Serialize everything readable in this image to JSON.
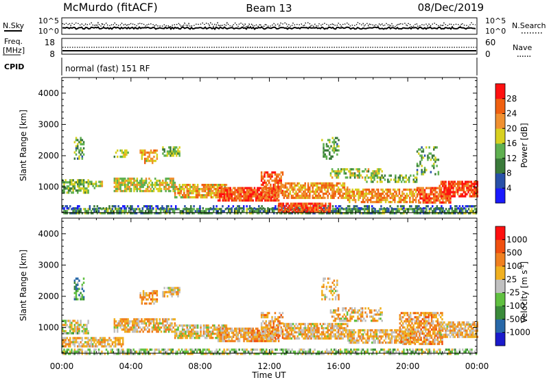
{
  "header": {
    "station": "McMurdo (fitACF)",
    "beam": "Beam 13",
    "date": "08/Dec/2019"
  },
  "noise_panel": {
    "left_label": "N.Sky",
    "right_label": "N.Search",
    "left_ticks": [
      "10^5",
      "10^0"
    ],
    "right_ticks": [
      "10^5",
      "10^0"
    ]
  },
  "freq_panel": {
    "left_label_1": "Freq.",
    "left_label_2": "[MHz]",
    "right_label": "Nave",
    "left_ticks": [
      "18",
      "8"
    ],
    "right_ticks": [
      "60",
      "0"
    ]
  },
  "cpid_panel": {
    "label": "CPID",
    "program": "normal (fast) 151 RF"
  },
  "chart_data": [
    {
      "type": "heatmap",
      "name": "power",
      "ylabel": "Slant Range [km]",
      "xlabel": "Time UT",
      "x_ticks": [
        "00:00",
        "04:00",
        "08:00",
        "12:00",
        "16:00",
        "20:00",
        "00:00"
      ],
      "x_range_hours": [
        0,
        24
      ],
      "y_ticks": [
        1000,
        2000,
        3000,
        4000
      ],
      "ylim": [
        180,
        4500
      ],
      "colorbar": {
        "label": "Power [dB]",
        "ticks": [
          "4",
          "8",
          "12",
          "16",
          "20",
          "24",
          "28"
        ],
        "colors": [
          "#1a1aff",
          "#2850a8",
          "#3a7a3a",
          "#5fb050",
          "#d8d020",
          "#f09030",
          "#f06010",
          "#ff1010"
        ]
      },
      "echo_regions": [
        {
          "t": [
            0.0,
            24.0
          ],
          "r": [
            190,
            330
          ],
          "level": 0.35,
          "density": 0.7
        },
        {
          "t": [
            0.0,
            24.0
          ],
          "r": [
            330,
            420
          ],
          "level": 0.2,
          "density": 0.35
        },
        {
          "t": [
            12.5,
            15.5
          ],
          "r": [
            200,
            500
          ],
          "level": 0.85,
          "density": 0.8
        },
        {
          "t": [
            0.0,
            1.5
          ],
          "r": [
            850,
            1250
          ],
          "level": 0.45,
          "density": 0.65
        },
        {
          "t": [
            1.5,
            2.3
          ],
          "r": [
            950,
            1200
          ],
          "level": 0.5,
          "density": 0.6
        },
        {
          "t": [
            3.0,
            6.5
          ],
          "r": [
            900,
            1300
          ],
          "level": 0.55,
          "density": 0.7
        },
        {
          "t": [
            6.5,
            9.5
          ],
          "r": [
            700,
            1100
          ],
          "level": 0.65,
          "density": 0.75
        },
        {
          "t": [
            9.0,
            12.5
          ],
          "r": [
            600,
            1000
          ],
          "level": 0.85,
          "density": 0.85
        },
        {
          "t": [
            11.5,
            12.8
          ],
          "r": [
            700,
            1500
          ],
          "level": 0.8,
          "density": 0.6
        },
        {
          "t": [
            12.8,
            16.5
          ],
          "r": [
            650,
            1150
          ],
          "level": 0.7,
          "density": 0.75
        },
        {
          "t": [
            16.5,
            20.5
          ],
          "r": [
            550,
            950
          ],
          "level": 0.7,
          "density": 0.7
        },
        {
          "t": [
            20.5,
            22.5
          ],
          "r": [
            500,
            1000
          ],
          "level": 0.8,
          "density": 0.75
        },
        {
          "t": [
            21.8,
            24.0
          ],
          "r": [
            700,
            1200
          ],
          "level": 0.85,
          "density": 0.8
        },
        {
          "t": [
            15.5,
            18.5
          ],
          "r": [
            1300,
            1600
          ],
          "level": 0.5,
          "density": 0.5
        },
        {
          "t": [
            17.5,
            20.5
          ],
          "r": [
            1150,
            1400
          ],
          "level": 0.45,
          "density": 0.5
        },
        {
          "t": [
            0.7,
            1.3
          ],
          "r": [
            1900,
            2600
          ],
          "level": 0.4,
          "density": 0.4
        },
        {
          "t": [
            3.0,
            3.8
          ],
          "r": [
            2000,
            2200
          ],
          "level": 0.5,
          "density": 0.5
        },
        {
          "t": [
            4.5,
            5.5
          ],
          "r": [
            1800,
            2200
          ],
          "level": 0.65,
          "density": 0.6
        },
        {
          "t": [
            5.8,
            6.8
          ],
          "r": [
            2000,
            2300
          ],
          "level": 0.45,
          "density": 0.6
        },
        {
          "t": [
            15.0,
            16.0
          ],
          "r": [
            1900,
            2600
          ],
          "level": 0.4,
          "density": 0.35
        },
        {
          "t": [
            20.5,
            21.8
          ],
          "r": [
            1400,
            2300
          ],
          "level": 0.4,
          "density": 0.3
        }
      ]
    },
    {
      "type": "heatmap",
      "name": "velocity",
      "ylabel": "Slant Range [km]",
      "xlabel": "Time UT",
      "x_ticks": [
        "00:00",
        "04:00",
        "08:00",
        "12:00",
        "16:00",
        "20:00",
        "00:00"
      ],
      "x_range_hours": [
        0,
        24
      ],
      "y_ticks": [
        1000,
        2000,
        3000,
        4000
      ],
      "ylim": [
        180,
        4500
      ],
      "colorbar": {
        "label": "Velocity [m s",
        "label_sup": "-1",
        "label_close": "]",
        "ticks": [
          "1000",
          "500",
          "100",
          "25",
          "-25",
          "-100",
          "-500",
          "-1000"
        ],
        "colors": [
          "#1a1acc",
          "#2868a8",
          "#3a8a3a",
          "#60c040",
          "#c0c0c0",
          "#f0b020",
          "#f08020",
          "#f05010",
          "#ff1010"
        ]
      },
      "echo_regions": [
        {
          "t": [
            0.0,
            24.0
          ],
          "r": [
            190,
            330
          ],
          "level": 0.45,
          "density": 0.6
        },
        {
          "t": [
            0.0,
            3.5
          ],
          "r": [
            400,
            700
          ],
          "level": 0.6,
          "density": 0.7
        },
        {
          "t": [
            0.0,
            1.5
          ],
          "r": [
            850,
            1250
          ],
          "level": 0.5,
          "density": 0.6
        },
        {
          "t": [
            3.0,
            6.5
          ],
          "r": [
            900,
            1300
          ],
          "level": 0.6,
          "density": 0.7
        },
        {
          "t": [
            6.5,
            9.5
          ],
          "r": [
            700,
            1100
          ],
          "level": 0.55,
          "density": 0.75
        },
        {
          "t": [
            9.0,
            12.5
          ],
          "r": [
            600,
            1000
          ],
          "level": 0.65,
          "density": 0.85
        },
        {
          "t": [
            11.5,
            12.8
          ],
          "r": [
            700,
            1500
          ],
          "level": 0.65,
          "density": 0.6
        },
        {
          "t": [
            12.8,
            16.5
          ],
          "r": [
            650,
            1150
          ],
          "level": 0.6,
          "density": 0.75
        },
        {
          "t": [
            16.5,
            20.5
          ],
          "r": [
            550,
            950
          ],
          "level": 0.6,
          "density": 0.7
        },
        {
          "t": [
            19.5,
            22.0
          ],
          "r": [
            500,
            1500
          ],
          "level": 0.65,
          "density": 0.7
        },
        {
          "t": [
            21.8,
            24.0
          ],
          "r": [
            700,
            1200
          ],
          "level": 0.6,
          "density": 0.75
        },
        {
          "t": [
            15.5,
            18.5
          ],
          "r": [
            1250,
            1650
          ],
          "level": 0.6,
          "density": 0.5
        },
        {
          "t": [
            0.7,
            1.3
          ],
          "r": [
            1900,
            2600
          ],
          "level": 0.3,
          "density": 0.4
        },
        {
          "t": [
            4.5,
            5.5
          ],
          "r": [
            1800,
            2200
          ],
          "level": 0.65,
          "density": 0.6
        },
        {
          "t": [
            5.8,
            6.8
          ],
          "r": [
            2000,
            2300
          ],
          "level": 0.6,
          "density": 0.5
        },
        {
          "t": [
            15.0,
            16.0
          ],
          "r": [
            1900,
            2600
          ],
          "level": 0.6,
          "density": 0.35
        }
      ]
    }
  ]
}
